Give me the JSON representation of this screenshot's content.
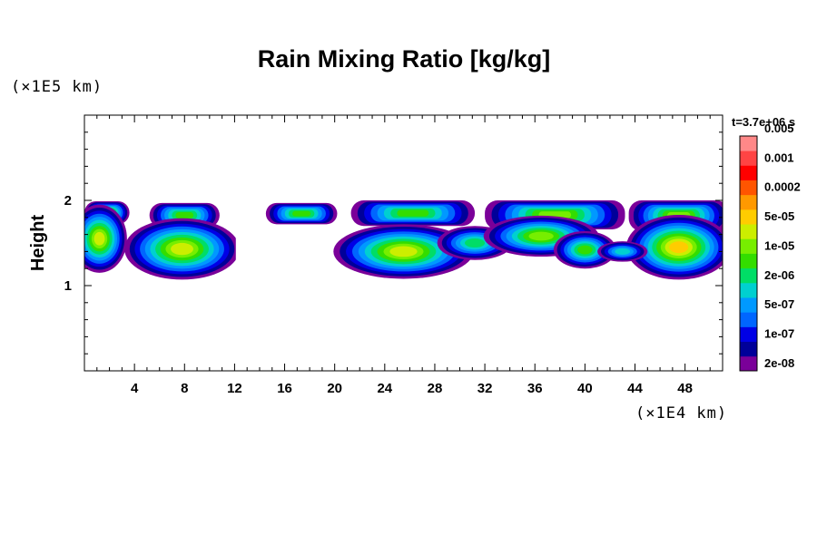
{
  "chart_data": {
    "type": "contour",
    "title": "Rain Mixing Ratio [kg/kg]",
    "ylabel": "Height",
    "xlabel": "",
    "x_unit": "(×1E4 km)",
    "y_unit": "(×1E5 km)",
    "time_label": "t=3.7e+06 s",
    "xlim": [
      0,
      51
    ],
    "ylim": [
      0,
      3
    ],
    "x_ticks": [
      4,
      8,
      12,
      16,
      20,
      24,
      28,
      32,
      36,
      40,
      44,
      48
    ],
    "y_ticks": [
      1,
      2
    ],
    "colorbar": {
      "colors": [
        "#7a0099",
        "#000099",
        "#0000e6",
        "#0066ff",
        "#0099ff",
        "#00d0d0",
        "#00dd66",
        "#33dd00",
        "#77ee00",
        "#ccee00",
        "#ffcc00",
        "#ff9900",
        "#ff5500",
        "#ff0000",
        "#ff4444",
        "#ff8888"
      ],
      "labels": [
        "2e-08",
        "1e-07",
        "5e-07",
        "2e-06",
        "1e-05",
        "5e-05",
        "0.0002",
        "0.001",
        "0.005"
      ]
    },
    "cloud_regions": [
      {
        "x": [
          0,
          2
        ],
        "y": [
          1.72,
          2.0
        ],
        "level": 8
      },
      {
        "x": [
          5,
          11
        ],
        "y": [
          1.65,
          1.98
        ],
        "level": 8
      },
      {
        "x": [
          0,
          12
        ],
        "y": [
          1.15,
          1.72
        ],
        "level": 9
      },
      {
        "x": [
          14.5,
          20
        ],
        "y": [
          1.7,
          1.98
        ],
        "level": 8
      },
      {
        "x": [
          20,
          31
        ],
        "y": [
          1.12,
          1.62
        ],
        "level": 9
      },
      {
        "x": [
          21,
          31
        ],
        "y": [
          1.68,
          2.0
        ],
        "level": 8
      },
      {
        "x": [
          29,
          34
        ],
        "y": [
          1.32,
          1.66
        ],
        "level": 6
      },
      {
        "x": [
          32,
          43
        ],
        "y": [
          1.42,
          2.0
        ],
        "level": 9
      },
      {
        "x": [
          37,
          43
        ],
        "y": [
          1.15,
          1.55
        ],
        "level": 8
      },
      {
        "x": [
          43,
          51
        ],
        "y": [
          1.12,
          2.0
        ],
        "level": 10
      }
    ]
  }
}
